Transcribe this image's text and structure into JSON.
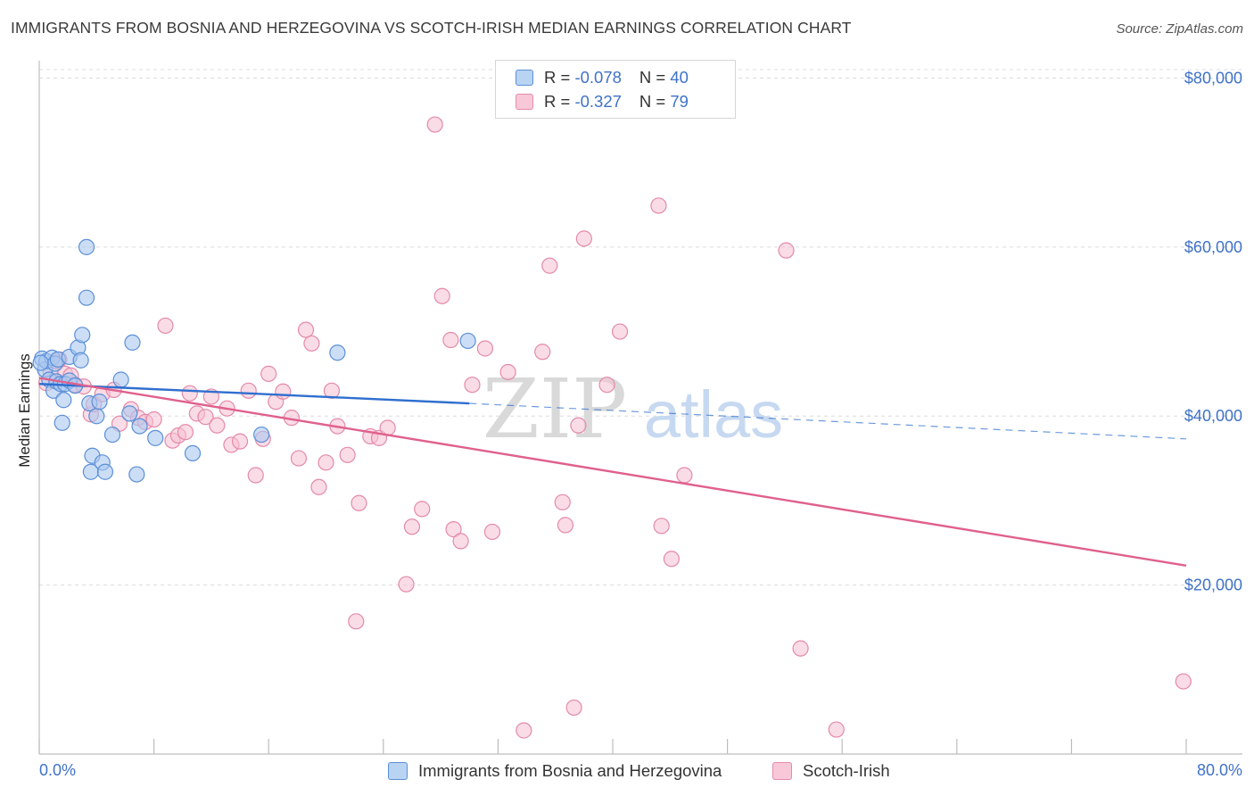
{
  "title": "IMMIGRANTS FROM BOSNIA AND HERZEGOVINA VS SCOTCH-IRISH MEDIAN EARNINGS CORRELATION CHART",
  "source": "Source: ZipAtlas.com",
  "watermark": {
    "zip": "ZIP",
    "atlas": "atlas"
  },
  "colors": {
    "blue_fill": "#aac8f0",
    "blue_stroke": "#5b8fd8",
    "blue_line": "#2f6fcf",
    "pink_fill": "#f6c0d2",
    "pink_stroke": "#e48aa8",
    "pink_line": "#e0608d",
    "axis_label": "#3f72c9",
    "grid": "#dcdcdc"
  },
  "legend": {
    "r_label": "R = ",
    "n_label": "N = ",
    "blue": {
      "r": "-0.078",
      "n": "40"
    },
    "pink": {
      "r": "-0.327",
      "n": "79"
    }
  },
  "bottom_legend": {
    "blue": "Immigrants from Bosnia and Herzegovina",
    "pink": "Scotch-Irish"
  },
  "chart_data": {
    "type": "scatter",
    "title": "IMMIGRANTS FROM BOSNIA AND HERZEGOVINA VS SCOTCH-IRISH MEDIAN EARNINGS CORRELATION CHART",
    "xlabel": "",
    "ylabel": "Median Earnings",
    "xlim": [
      0,
      80
    ],
    "ylim": [
      0,
      81000
    ],
    "x_tick_labels": [
      "0.0%",
      "80.0%"
    ],
    "y_ticks": [
      20000,
      40000,
      60000,
      80000
    ],
    "y_tick_labels": [
      "$20,000",
      "$40,000",
      "$60,000",
      "$80,000"
    ],
    "grid": true,
    "series": [
      {
        "name": "Immigrants from Bosnia and Herzegovina",
        "color": "blue",
        "points": [
          [
            0.2,
            46800
          ],
          [
            0.4,
            45500
          ],
          [
            0.5,
            46500
          ],
          [
            0.7,
            44300
          ],
          [
            0.9,
            46900
          ],
          [
            1.0,
            43000
          ],
          [
            1.1,
            46200
          ],
          [
            1.2,
            44100
          ],
          [
            1.3,
            46700
          ],
          [
            1.5,
            43800
          ],
          [
            1.6,
            39200
          ],
          [
            1.7,
            41900
          ],
          [
            1.8,
            43800
          ],
          [
            2.1,
            47000
          ],
          [
            2.1,
            44200
          ],
          [
            2.7,
            48100
          ],
          [
            2.9,
            46600
          ],
          [
            3.0,
            49600
          ],
          [
            3.3,
            60000
          ],
          [
            3.3,
            54000
          ],
          [
            3.5,
            41500
          ],
          [
            3.6,
            33400
          ],
          [
            3.7,
            35300
          ],
          [
            4.0,
            40000
          ],
          [
            4.2,
            41700
          ],
          [
            4.4,
            34500
          ],
          [
            4.6,
            33400
          ],
          [
            5.1,
            37800
          ],
          [
            5.7,
            44300
          ],
          [
            6.3,
            40300
          ],
          [
            6.5,
            48700
          ],
          [
            6.8,
            33100
          ],
          [
            7.0,
            38800
          ],
          [
            8.1,
            37400
          ],
          [
            10.7,
            35600
          ],
          [
            15.5,
            37800
          ],
          [
            20.8,
            47500
          ],
          [
            29.9,
            48900
          ],
          [
            0.1,
            46300
          ],
          [
            2.5,
            43600
          ]
        ],
        "trend": {
          "x0": 0,
          "y0": 43800,
          "x1": 30,
          "y1": 41500,
          "dash_x1": 80,
          "dash_y1": 37300
        }
      },
      {
        "name": "Scotch-Irish",
        "color": "pink",
        "points": [
          [
            0.5,
            43900
          ],
          [
            0.8,
            45200
          ],
          [
            1.2,
            46500
          ],
          [
            1.4,
            46700
          ],
          [
            1.8,
            45000
          ],
          [
            2.2,
            44800
          ],
          [
            2.5,
            43700
          ],
          [
            3.1,
            43500
          ],
          [
            3.6,
            40200
          ],
          [
            3.8,
            41400
          ],
          [
            4.4,
            42600
          ],
          [
            5.2,
            43100
          ],
          [
            5.6,
            39100
          ],
          [
            6.4,
            40800
          ],
          [
            6.9,
            39800
          ],
          [
            7.4,
            39300
          ],
          [
            8.0,
            39600
          ],
          [
            8.8,
            50700
          ],
          [
            9.3,
            37100
          ],
          [
            9.7,
            37700
          ],
          [
            10.2,
            38100
          ],
          [
            10.5,
            42700
          ],
          [
            11.0,
            40300
          ],
          [
            11.6,
            39900
          ],
          [
            12.0,
            42300
          ],
          [
            12.4,
            38900
          ],
          [
            13.1,
            40900
          ],
          [
            13.4,
            36600
          ],
          [
            14.0,
            37000
          ],
          [
            14.6,
            43000
          ],
          [
            15.1,
            33000
          ],
          [
            15.6,
            37300
          ],
          [
            16.0,
            45000
          ],
          [
            16.5,
            41700
          ],
          [
            17.0,
            42900
          ],
          [
            17.6,
            39800
          ],
          [
            18.1,
            35000
          ],
          [
            18.6,
            50200
          ],
          [
            19.0,
            48600
          ],
          [
            19.5,
            31600
          ],
          [
            20.0,
            34500
          ],
          [
            20.4,
            43000
          ],
          [
            20.8,
            38800
          ],
          [
            21.5,
            35400
          ],
          [
            22.1,
            15700
          ],
          [
            22.3,
            29700
          ],
          [
            23.1,
            37600
          ],
          [
            23.7,
            37400
          ],
          [
            24.3,
            38600
          ],
          [
            25.6,
            20100
          ],
          [
            26.0,
            26900
          ],
          [
            26.7,
            29000
          ],
          [
            27.6,
            74500
          ],
          [
            28.1,
            54200
          ],
          [
            28.7,
            49000
          ],
          [
            28.9,
            26600
          ],
          [
            29.4,
            25200
          ],
          [
            30.2,
            43700
          ],
          [
            31.1,
            48000
          ],
          [
            31.6,
            26300
          ],
          [
            32.7,
            45200
          ],
          [
            33.8,
            2800
          ],
          [
            35.1,
            47600
          ],
          [
            35.6,
            57800
          ],
          [
            36.5,
            29800
          ],
          [
            36.7,
            27100
          ],
          [
            37.3,
            5500
          ],
          [
            37.6,
            38900
          ],
          [
            38.0,
            61000
          ],
          [
            39.6,
            43700
          ],
          [
            40.5,
            50000
          ],
          [
            43.2,
            64900
          ],
          [
            43.4,
            27000
          ],
          [
            44.1,
            23100
          ],
          [
            45.0,
            33000
          ],
          [
            52.1,
            59600
          ],
          [
            53.1,
            12500
          ],
          [
            55.6,
            2900
          ],
          [
            79.8,
            8600
          ]
        ],
        "trend": {
          "x0": 0,
          "y0": 44500,
          "x1": 80,
          "y1": 22300
        }
      }
    ]
  }
}
